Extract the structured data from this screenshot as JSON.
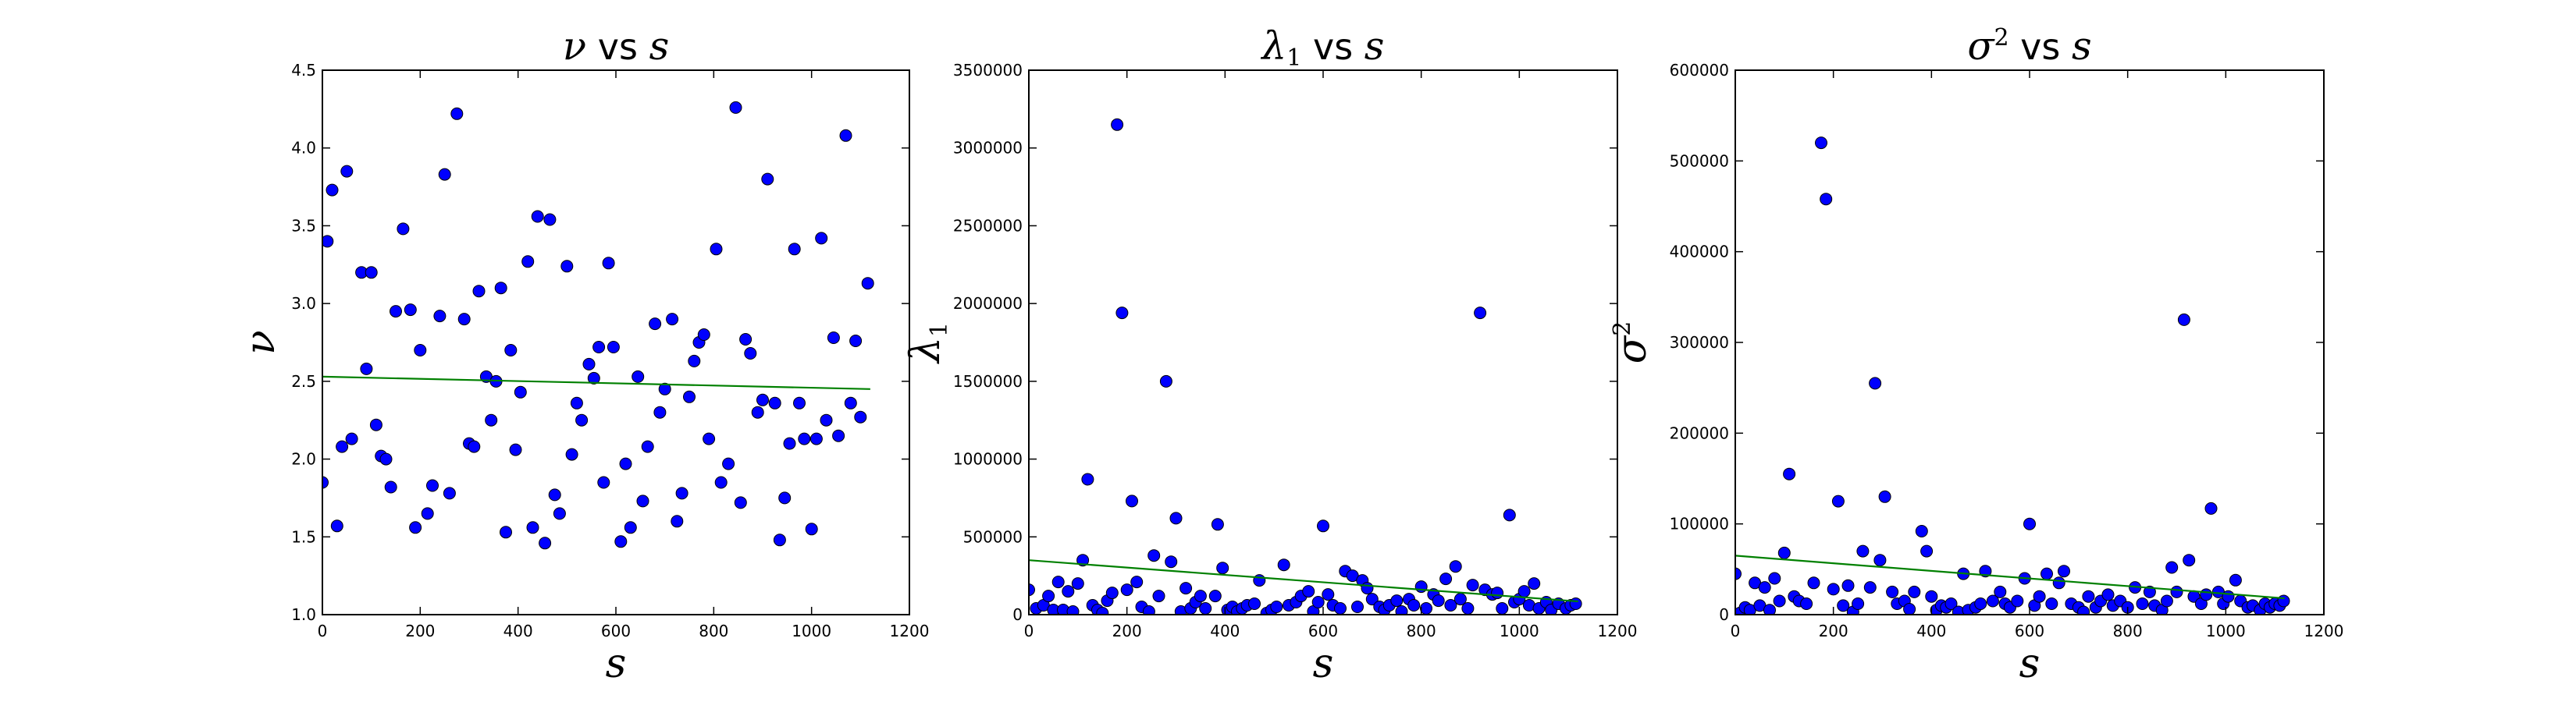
{
  "chart_data": [
    {
      "type": "scatter",
      "title": "ν vs s",
      "title_parts": {
        "lhs": "ν",
        "lhs_sub": "",
        "lhs_sup": "",
        "vs": "vs",
        "rhs": "s"
      },
      "xlabel": "s",
      "ylabel": "ν",
      "ylabel_sub": "",
      "ylabel_sup": "",
      "xlim": [
        0,
        1200
      ],
      "ylim": [
        1.0,
        4.5
      ],
      "xticks": [
        0,
        200,
        400,
        600,
        800,
        1000,
        1200
      ],
      "xtick_labels": [
        "0",
        "200",
        "400",
        "600",
        "800",
        "1000",
        "1200"
      ],
      "yticks": [
        1.0,
        1.5,
        2.0,
        2.5,
        3.0,
        3.5,
        4.0,
        4.5
      ],
      "ytick_labels": [
        "1.0",
        "1.5",
        "2.0",
        "2.5",
        "3.0",
        "3.5",
        "4.0",
        "4.5"
      ],
      "grid": false,
      "marker_color": "#0000ff",
      "trend_color": "#008000",
      "points": [
        [
          0,
          1.85
        ],
        [
          10,
          3.4
        ],
        [
          20,
          3.73
        ],
        [
          30,
          1.57
        ],
        [
          40,
          2.08
        ],
        [
          50,
          3.85
        ],
        [
          60,
          2.13
        ],
        [
          80,
          3.2
        ],
        [
          90,
          2.58
        ],
        [
          100,
          3.2
        ],
        [
          110,
          2.22
        ],
        [
          120,
          2.02
        ],
        [
          130,
          2.0
        ],
        [
          140,
          1.82
        ],
        [
          150,
          2.95
        ],
        [
          165,
          3.48
        ],
        [
          180,
          2.96
        ],
        [
          190,
          1.56
        ],
        [
          200,
          2.7
        ],
        [
          215,
          1.65
        ],
        [
          225,
          1.83
        ],
        [
          240,
          2.92
        ],
        [
          250,
          3.83
        ],
        [
          260,
          1.78
        ],
        [
          275,
          4.22
        ],
        [
          290,
          2.9
        ],
        [
          300,
          2.1
        ],
        [
          310,
          2.08
        ],
        [
          320,
          3.08
        ],
        [
          335,
          2.53
        ],
        [
          345,
          2.25
        ],
        [
          355,
          2.5
        ],
        [
          365,
          3.1
        ],
        [
          375,
          1.53
        ],
        [
          385,
          2.7
        ],
        [
          395,
          2.06
        ],
        [
          405,
          2.43
        ],
        [
          420,
          3.27
        ],
        [
          430,
          1.56
        ],
        [
          440,
          3.56
        ],
        [
          455,
          1.46
        ],
        [
          465,
          3.54
        ],
        [
          475,
          1.77
        ],
        [
          485,
          1.65
        ],
        [
          500,
          3.24
        ],
        [
          510,
          2.03
        ],
        [
          520,
          2.36
        ],
        [
          530,
          2.25
        ],
        [
          545,
          2.61
        ],
        [
          555,
          2.52
        ],
        [
          565,
          2.72
        ],
        [
          575,
          1.85
        ],
        [
          585,
          3.26
        ],
        [
          595,
          2.72
        ],
        [
          610,
          1.47
        ],
        [
          620,
          1.97
        ],
        [
          630,
          1.56
        ],
        [
          645,
          2.53
        ],
        [
          655,
          1.73
        ],
        [
          665,
          2.08
        ],
        [
          680,
          2.87
        ],
        [
          690,
          2.3
        ],
        [
          700,
          2.45
        ],
        [
          715,
          2.9
        ],
        [
          725,
          1.6
        ],
        [
          735,
          1.78
        ],
        [
          750,
          2.4
        ],
        [
          760,
          2.63
        ],
        [
          770,
          2.75
        ],
        [
          780,
          2.8
        ],
        [
          790,
          2.13
        ],
        [
          805,
          3.35
        ],
        [
          815,
          1.85
        ],
        [
          830,
          1.97
        ],
        [
          845,
          4.26
        ],
        [
          855,
          1.72
        ],
        [
          865,
          2.77
        ],
        [
          875,
          2.68
        ],
        [
          890,
          2.3
        ],
        [
          900,
          2.38
        ],
        [
          910,
          3.8
        ],
        [
          925,
          2.36
        ],
        [
          935,
          1.48
        ],
        [
          945,
          1.75
        ],
        [
          955,
          2.1
        ],
        [
          965,
          3.35
        ],
        [
          975,
          2.36
        ],
        [
          985,
          2.13
        ],
        [
          1000,
          1.55
        ],
        [
          1010,
          2.13
        ],
        [
          1020,
          3.42
        ],
        [
          1030,
          2.25
        ],
        [
          1045,
          2.78
        ],
        [
          1055,
          2.15
        ],
        [
          1070,
          4.08
        ],
        [
          1080,
          2.36
        ],
        [
          1090,
          2.76
        ],
        [
          1100,
          2.27
        ],
        [
          1115,
          3.13
        ]
      ],
      "trend": [
        [
          0,
          2.53
        ],
        [
          1120,
          2.45
        ]
      ]
    },
    {
      "type": "scatter",
      "title": "λ1 vs s",
      "title_parts": {
        "lhs": "λ",
        "lhs_sub": "1",
        "lhs_sup": "",
        "vs": "vs",
        "rhs": "s"
      },
      "xlabel": "s",
      "ylabel": "λ",
      "ylabel_sub": "1",
      "ylabel_sup": "",
      "xlim": [
        0,
        1200
      ],
      "ylim": [
        0,
        3500000
      ],
      "xticks": [
        0,
        200,
        400,
        600,
        800,
        1000,
        1200
      ],
      "xtick_labels": [
        "0",
        "200",
        "400",
        "600",
        "800",
        "1000",
        "1200"
      ],
      "yticks": [
        0,
        500000,
        1000000,
        1500000,
        2000000,
        2500000,
        3000000,
        3500000
      ],
      "ytick_labels": [
        "0",
        "500000",
        "1000000",
        "1500000",
        "2000000",
        "2500000",
        "3000000",
        "3500000"
      ],
      "grid": false,
      "marker_color": "#0000ff",
      "trend_color": "#008000",
      "points": [
        [
          0,
          160000
        ],
        [
          15,
          40000
        ],
        [
          30,
          60000
        ],
        [
          40,
          120000
        ],
        [
          50,
          30000
        ],
        [
          60,
          210000
        ],
        [
          70,
          30000
        ],
        [
          80,
          150000
        ],
        [
          90,
          20000
        ],
        [
          100,
          200000
        ],
        [
          110,
          350000
        ],
        [
          120,
          870000
        ],
        [
          130,
          60000
        ],
        [
          140,
          30000
        ],
        [
          150,
          10000
        ],
        [
          160,
          90000
        ],
        [
          170,
          140000
        ],
        [
          180,
          3150000
        ],
        [
          190,
          1940000
        ],
        [
          200,
          160000
        ],
        [
          210,
          730000
        ],
        [
          220,
          210000
        ],
        [
          230,
          50000
        ],
        [
          245,
          20000
        ],
        [
          255,
          380000
        ],
        [
          265,
          120000
        ],
        [
          280,
          1500000
        ],
        [
          290,
          340000
        ],
        [
          300,
          620000
        ],
        [
          310,
          20000
        ],
        [
          320,
          170000
        ],
        [
          330,
          40000
        ],
        [
          340,
          80000
        ],
        [
          350,
          120000
        ],
        [
          360,
          40000
        ],
        [
          380,
          120000
        ],
        [
          385,
          580000
        ],
        [
          395,
          300000
        ],
        [
          405,
          30000
        ],
        [
          415,
          50000
        ],
        [
          425,
          20000
        ],
        [
          435,
          40000
        ],
        [
          445,
          60000
        ],
        [
          460,
          70000
        ],
        [
          470,
          220000
        ],
        [
          485,
          10000
        ],
        [
          495,
          30000
        ],
        [
          505,
          50000
        ],
        [
          520,
          320000
        ],
        [
          530,
          60000
        ],
        [
          545,
          80000
        ],
        [
          555,
          120000
        ],
        [
          570,
          150000
        ],
        [
          580,
          20000
        ],
        [
          590,
          80000
        ],
        [
          600,
          570000
        ],
        [
          610,
          130000
        ],
        [
          620,
          60000
        ],
        [
          635,
          40000
        ],
        [
          645,
          280000
        ],
        [
          660,
          250000
        ],
        [
          670,
          50000
        ],
        [
          680,
          220000
        ],
        [
          690,
          170000
        ],
        [
          700,
          100000
        ],
        [
          715,
          50000
        ],
        [
          725,
          30000
        ],
        [
          735,
          60000
        ],
        [
          750,
          90000
        ],
        [
          760,
          20000
        ],
        [
          775,
          100000
        ],
        [
          785,
          60000
        ],
        [
          800,
          180000
        ],
        [
          810,
          40000
        ],
        [
          825,
          130000
        ],
        [
          835,
          90000
        ],
        [
          850,
          230000
        ],
        [
          860,
          60000
        ],
        [
          870,
          310000
        ],
        [
          880,
          100000
        ],
        [
          895,
          40000
        ],
        [
          905,
          190000
        ],
        [
          920,
          1940000
        ],
        [
          930,
          160000
        ],
        [
          945,
          130000
        ],
        [
          955,
          140000
        ],
        [
          965,
          40000
        ],
        [
          980,
          640000
        ],
        [
          990,
          80000
        ],
        [
          1000,
          100000
        ],
        [
          1010,
          150000
        ],
        [
          1020,
          60000
        ],
        [
          1030,
          200000
        ],
        [
          1040,
          40000
        ],
        [
          1055,
          80000
        ],
        [
          1065,
          30000
        ],
        [
          1080,
          70000
        ],
        [
          1095,
          40000
        ],
        [
          1105,
          60000
        ],
        [
          1115,
          70000
        ]
      ],
      "trend": [
        [
          0,
          350000
        ],
        [
          1120,
          85000
        ]
      ]
    },
    {
      "type": "scatter",
      "title": "σ2 vs s",
      "title_parts": {
        "lhs": "σ",
        "lhs_sub": "",
        "lhs_sup": "2",
        "vs": "vs",
        "rhs": "s"
      },
      "xlabel": "s",
      "ylabel": "σ",
      "ylabel_sub": "",
      "ylabel_sup": "2",
      "xlim": [
        0,
        1200
      ],
      "ylim": [
        0,
        600000
      ],
      "xticks": [
        0,
        200,
        400,
        600,
        800,
        1000,
        1200
      ],
      "xtick_labels": [
        "0",
        "200",
        "400",
        "600",
        "800",
        "1000",
        "1200"
      ],
      "yticks": [
        0,
        100000,
        200000,
        300000,
        400000,
        500000,
        600000
      ],
      "ytick_labels": [
        "0",
        "100000",
        "200000",
        "300000",
        "400000",
        "500000",
        "600000"
      ],
      "grid": false,
      "marker_color": "#0000ff",
      "trend_color": "#008000",
      "points": [
        [
          0,
          45000
        ],
        [
          10,
          2000
        ],
        [
          20,
          8000
        ],
        [
          30,
          5000
        ],
        [
          40,
          35000
        ],
        [
          50,
          10000
        ],
        [
          60,
          30000
        ],
        [
          70,
          5000
        ],
        [
          80,
          40000
        ],
        [
          90,
          15000
        ],
        [
          100,
          68000
        ],
        [
          110,
          155000
        ],
        [
          120,
          20000
        ],
        [
          130,
          15000
        ],
        [
          145,
          12000
        ],
        [
          160,
          35000
        ],
        [
          175,
          520000
        ],
        [
          185,
          458000
        ],
        [
          200,
          28000
        ],
        [
          210,
          125000
        ],
        [
          220,
          10000
        ],
        [
          230,
          32000
        ],
        [
          240,
          3000
        ],
        [
          250,
          12000
        ],
        [
          260,
          70000
        ],
        [
          275,
          30000
        ],
        [
          285,
          255000
        ],
        [
          295,
          60000
        ],
        [
          305,
          130000
        ],
        [
          320,
          25000
        ],
        [
          330,
          12000
        ],
        [
          345,
          15000
        ],
        [
          355,
          6000
        ],
        [
          365,
          25000
        ],
        [
          380,
          92000
        ],
        [
          390,
          70000
        ],
        [
          400,
          20000
        ],
        [
          410,
          5000
        ],
        [
          420,
          10000
        ],
        [
          430,
          8000
        ],
        [
          440,
          12000
        ],
        [
          455,
          3000
        ],
        [
          465,
          45000
        ],
        [
          475,
          5000
        ],
        [
          490,
          8000
        ],
        [
          500,
          12000
        ],
        [
          510,
          48000
        ],
        [
          525,
          15000
        ],
        [
          540,
          25000
        ],
        [
          550,
          12000
        ],
        [
          560,
          8000
        ],
        [
          575,
          15000
        ],
        [
          590,
          40000
        ],
        [
          600,
          100000
        ],
        [
          610,
          10000
        ],
        [
          620,
          20000
        ],
        [
          635,
          45000
        ],
        [
          645,
          12000
        ],
        [
          660,
          35000
        ],
        [
          670,
          48000
        ],
        [
          685,
          12000
        ],
        [
          700,
          8000
        ],
        [
          710,
          3000
        ],
        [
          720,
          20000
        ],
        [
          735,
          8000
        ],
        [
          745,
          15000
        ],
        [
          760,
          22000
        ],
        [
          770,
          10000
        ],
        [
          785,
          15000
        ],
        [
          800,
          8000
        ],
        [
          815,
          30000
        ],
        [
          830,
          12000
        ],
        [
          845,
          25000
        ],
        [
          855,
          10000
        ],
        [
          870,
          5000
        ],
        [
          880,
          15000
        ],
        [
          890,
          52000
        ],
        [
          900,
          25000
        ],
        [
          915,
          325000
        ],
        [
          925,
          60000
        ],
        [
          935,
          20000
        ],
        [
          950,
          12000
        ],
        [
          960,
          22000
        ],
        [
          970,
          117000
        ],
        [
          985,
          25000
        ],
        [
          995,
          12000
        ],
        [
          1005,
          20000
        ],
        [
          1020,
          38000
        ],
        [
          1030,
          15000
        ],
        [
          1045,
          8000
        ],
        [
          1055,
          10000
        ],
        [
          1070,
          5000
        ],
        [
          1080,
          12000
        ],
        [
          1090,
          8000
        ],
        [
          1100,
          12000
        ],
        [
          1110,
          10000
        ],
        [
          1118,
          15000
        ]
      ],
      "trend": [
        [
          0,
          65000
        ],
        [
          1120,
          18000
        ]
      ]
    }
  ]
}
